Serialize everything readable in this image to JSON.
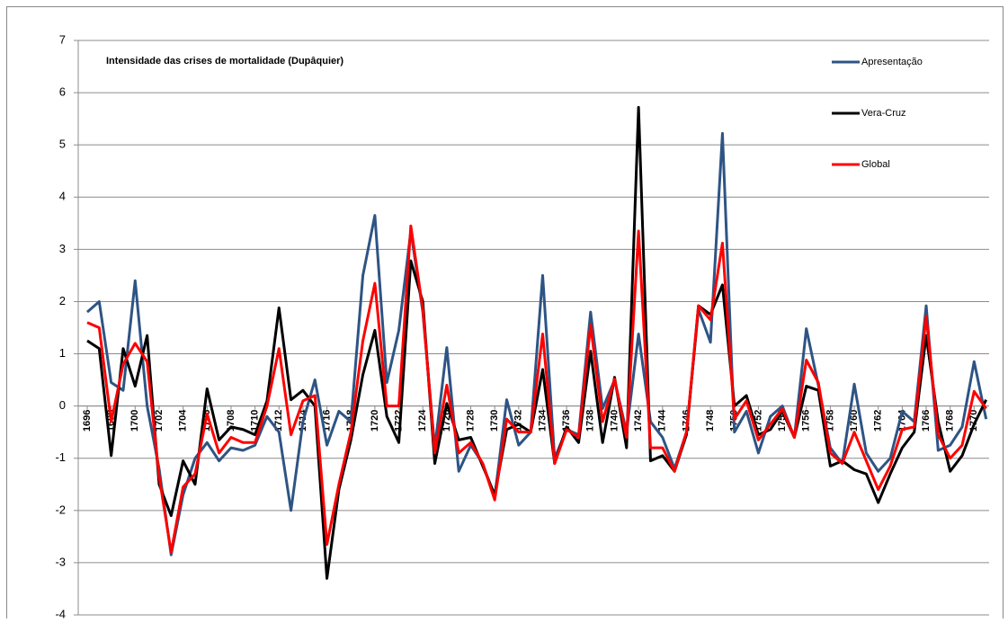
{
  "chart_data": {
    "type": "line",
    "title": "Intensidade das crises de mortalidade (Dupâquier)",
    "x": [
      1696,
      1697,
      1698,
      1699,
      1700,
      1701,
      1702,
      1703,
      1704,
      1705,
      1706,
      1707,
      1708,
      1709,
      1710,
      1711,
      1712,
      1713,
      1714,
      1715,
      1716,
      1717,
      1718,
      1719,
      1720,
      1721,
      1722,
      1723,
      1724,
      1725,
      1726,
      1727,
      1728,
      1729,
      1730,
      1731,
      1732,
      1733,
      1734,
      1735,
      1736,
      1737,
      1738,
      1739,
      1740,
      1741,
      1742,
      1743,
      1744,
      1745,
      1746,
      1747,
      1748,
      1749,
      1750,
      1751,
      1752,
      1753,
      1754,
      1755,
      1756,
      1757,
      1758,
      1759,
      1760,
      1761,
      1762,
      1763,
      1764,
      1765,
      1766,
      1767,
      1768,
      1769,
      1770,
      1771
    ],
    "xlim": [
      1695.25,
      1771.25
    ],
    "xticks": [
      1696,
      1698,
      1700,
      1702,
      1704,
      1706,
      1708,
      1710,
      1712,
      1714,
      1716,
      1718,
      1720,
      1722,
      1724,
      1726,
      1728,
      1730,
      1732,
      1734,
      1736,
      1738,
      1740,
      1742,
      1744,
      1746,
      1748,
      1750,
      1752,
      1754,
      1756,
      1758,
      1760,
      1762,
      1764,
      1766,
      1768,
      1770
    ],
    "ylim": [
      -4,
      7
    ],
    "yticks": [
      -4,
      -3,
      -2,
      -1,
      0,
      1,
      2,
      3,
      4,
      5,
      6,
      7
    ],
    "grid": true,
    "legend": "top-right",
    "series": [
      {
        "name": "Apresentação",
        "color": "#2e5484",
        "values": [
          1.8,
          2.0,
          0.45,
          0.3,
          2.4,
          0.0,
          -1.2,
          -2.85,
          -1.7,
          -1.0,
          -0.7,
          -1.05,
          -0.8,
          -0.85,
          -0.75,
          -0.2,
          -0.5,
          -2.0,
          -0.3,
          0.5,
          -0.75,
          -0.1,
          -0.3,
          2.5,
          3.65,
          0.45,
          1.45,
          3.35,
          1.8,
          -0.8,
          1.12,
          -1.25,
          -0.75,
          -1.1,
          -1.75,
          0.12,
          -0.75,
          -0.5,
          2.5,
          -1.0,
          -0.45,
          -0.55,
          1.8,
          -0.05,
          0.5,
          -0.5,
          1.38,
          -0.3,
          -0.6,
          -1.2,
          -0.5,
          1.85,
          1.22,
          5.22,
          -0.5,
          -0.1,
          -0.9,
          -0.2,
          0.0,
          -0.6,
          1.48,
          0.4,
          -0.8,
          -1.1,
          0.42,
          -0.9,
          -1.25,
          -1.0,
          -0.1,
          -0.3,
          1.92,
          -0.85,
          -0.75,
          -0.4,
          0.85,
          -0.25
        ]
      },
      {
        "name": "Vera-Cruz",
        "color": "#000000",
        "values": [
          1.25,
          1.1,
          -0.95,
          1.1,
          0.38,
          1.35,
          -1.5,
          -2.1,
          -1.05,
          -1.5,
          0.33,
          -0.65,
          -0.4,
          -0.45,
          -0.55,
          0.1,
          1.88,
          0.12,
          0.3,
          0.0,
          -3.3,
          -1.6,
          -0.65,
          0.6,
          1.45,
          -0.2,
          -0.7,
          2.78,
          2.0,
          -1.1,
          0.05,
          -0.65,
          -0.6,
          -1.15,
          -1.7,
          -0.45,
          -0.35,
          -0.5,
          0.7,
          -1.1,
          -0.4,
          -0.7,
          1.05,
          -0.7,
          0.55,
          -0.8,
          5.72,
          -1.05,
          -0.95,
          -1.25,
          -0.55,
          1.92,
          1.75,
          2.32,
          0.0,
          0.2,
          -0.55,
          -0.45,
          -0.1,
          -0.6,
          0.38,
          0.3,
          -1.15,
          -1.05,
          -1.22,
          -1.3,
          -1.85,
          -1.3,
          -0.8,
          -0.5,
          1.35,
          -0.3,
          -1.25,
          -0.95,
          -0.35,
          0.12
        ]
      },
      {
        "name": "Global",
        "color": "#ff0000",
        "values": [
          1.6,
          1.5,
          -0.3,
          0.8,
          1.2,
          0.85,
          -1.35,
          -2.8,
          -1.55,
          -1.3,
          -0.15,
          -0.9,
          -0.6,
          -0.7,
          -0.7,
          0.0,
          1.1,
          -0.55,
          0.1,
          0.2,
          -2.65,
          -1.5,
          -0.5,
          1.25,
          2.35,
          0.0,
          0.0,
          3.45,
          1.85,
          -0.9,
          0.4,
          -0.9,
          -0.7,
          -1.1,
          -1.8,
          -0.25,
          -0.5,
          -0.5,
          1.38,
          -1.1,
          -0.45,
          -0.6,
          1.55,
          -0.3,
          0.52,
          -0.6,
          3.35,
          -0.8,
          -0.8,
          -1.25,
          -0.5,
          1.92,
          1.65,
          3.12,
          -0.25,
          0.1,
          -0.65,
          -0.35,
          -0.05,
          -0.6,
          0.88,
          0.45,
          -0.9,
          -1.1,
          -0.5,
          -1.05,
          -1.6,
          -1.15,
          -0.45,
          -0.4,
          1.72,
          -0.55,
          -1.0,
          -0.75,
          0.28,
          -0.05
        ]
      }
    ]
  }
}
